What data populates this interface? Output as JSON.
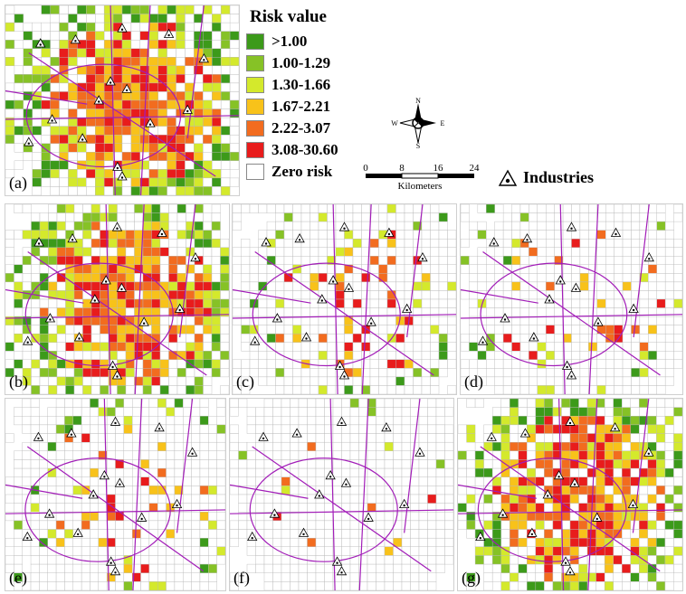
{
  "legend": {
    "title": "Risk value",
    "items": [
      {
        "label": ">1.00",
        "color": "#3c9a1a"
      },
      {
        "label": "1.00-1.29",
        "color": "#86c226"
      },
      {
        "label": "1.30-1.66",
        "color": "#d4e92c"
      },
      {
        "label": "1.67-2.21",
        "color": "#f8c21a"
      },
      {
        "label": "2.22-3.07",
        "color": "#f26c1f"
      },
      {
        "label": "3.08-30.60",
        "color": "#e81c1c"
      },
      {
        "label": "Zero risk",
        "color": "#ffffff"
      }
    ]
  },
  "compass": {
    "n": "N",
    "s": "S",
    "e": "E",
    "w": "W"
  },
  "scale": {
    "ticks": [
      "0",
      "8",
      "16",
      "24"
    ],
    "unit": "Kilometers"
  },
  "industries_label": "Industries",
  "panels": [
    {
      "label": "(a)",
      "risk": 1.0,
      "seed": 11
    },
    {
      "label": "(b)",
      "risk": 0.9,
      "seed": 23
    },
    {
      "label": "(c)",
      "risk": 0.22,
      "seed": 37
    },
    {
      "label": "(d)",
      "risk": 0.18,
      "seed": 41
    },
    {
      "label": "(e)",
      "risk": 0.2,
      "seed": 53
    },
    {
      "label": "(f)",
      "risk": 0.03,
      "seed": 67
    },
    {
      "label": "(g)",
      "risk": 0.85,
      "seed": 79
    }
  ],
  "colors": {
    "highway": "#a21db8",
    "tract_line": "#b8b8b8",
    "zero": "#ffffff"
  }
}
